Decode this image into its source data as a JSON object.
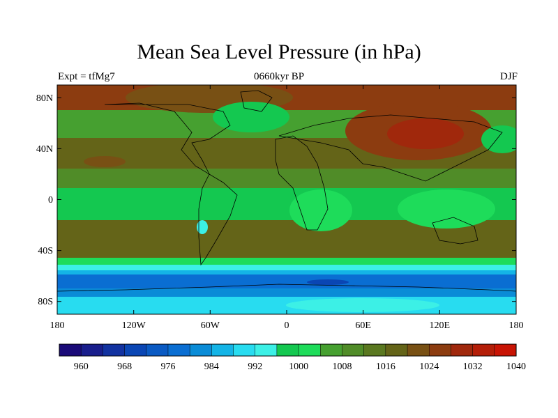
{
  "title": "Mean Sea Level Pressure (in hPa)",
  "left_label": "Expt = tfMg7",
  "center_label": "0660kyr BP",
  "right_label": "DJF",
  "lon_ticks": [
    "180",
    "120W",
    "60W",
    "0",
    "60E",
    "120E",
    "180"
  ],
  "lat_ticks": [
    "80N",
    "40N",
    "0",
    "40S",
    "80S"
  ],
  "colorbar": {
    "labels": [
      "960",
      "968",
      "976",
      "984",
      "992",
      "1000",
      "1008",
      "1016",
      "1024",
      "1032",
      "1040"
    ],
    "colors": [
      "#1a0a78",
      "#191e8c",
      "#1232a0",
      "#0a46b4",
      "#0a5ac3",
      "#0a6ed2",
      "#0a8cd7",
      "#14b4e6",
      "#28dcf0",
      "#3cf0e6",
      "#14c850",
      "#1edc5a",
      "#46a030",
      "#508c28",
      "#5a7820",
      "#646418",
      "#785014",
      "#8c3c10",
      "#a0280c",
      "#b41e08",
      "#c81404"
    ]
  },
  "chart_data": {
    "type": "heatmap",
    "variable": "Mean Sea Level Pressure (in hPa)",
    "season": "DJF",
    "lon_range": [
      -180,
      180
    ],
    "lat_range": [
      -90,
      90
    ],
    "contour_levels": [
      960,
      964,
      968,
      972,
      976,
      980,
      984,
      988,
      992,
      996,
      1000,
      1004,
      1008,
      1012,
      1016,
      1020,
      1024,
      1028,
      1032,
      1036,
      1040
    ],
    "bands": [
      {
        "lat_from": 90,
        "lat_to": 70,
        "value": 1028
      },
      {
        "lat_from": 70,
        "lat_to": 50,
        "value": 1012
      },
      {
        "lat_from": 50,
        "lat_to": 25,
        "value": 1018
      },
      {
        "lat_from": 25,
        "lat_to": 10,
        "value": 1014
      },
      {
        "lat_from": 10,
        "lat_to": -15,
        "value": 1010
      },
      {
        "lat_from": -15,
        "lat_to": -45,
        "value": 1018
      },
      {
        "lat_from": -45,
        "lat_to": -55,
        "value": 1008
      },
      {
        "lat_from": -55,
        "lat_to": -62,
        "value": 996
      },
      {
        "lat_from": -62,
        "lat_to": -72,
        "value": 988
      },
      {
        "lat_from": -72,
        "lat_to": -90,
        "value": 994
      }
    ],
    "features": [
      {
        "name": "siberian-high",
        "lon": 90,
        "lat": 50,
        "value": 1036
      },
      {
        "name": "antarctic-high",
        "lon": 50,
        "lat": -82,
        "value": 1000
      }
    ]
  }
}
